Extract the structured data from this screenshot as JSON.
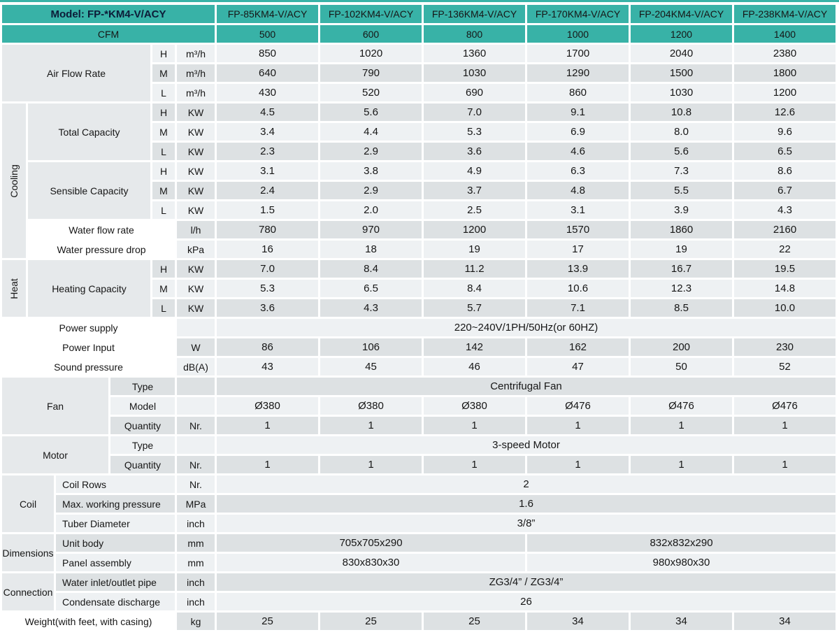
{
  "colors": {
    "header_teal": "#38b2a7",
    "row_light": "#eef1f3",
    "row_dark": "#dde1e3",
    "label_gray": "#e6e9eb",
    "model_text": "#0c1c38"
  },
  "table": {
    "rows": [
      [
        {
          "t": "Model: FP-*KM4-V/ACY",
          "cs": 6,
          "cls": "teal model",
          "name": "model-header"
        },
        {
          "t": "FP-85KM4-V/ACY",
          "cls": "teal head",
          "name": "column-header"
        },
        {
          "t": "FP-102KM4-V/ACY",
          "cls": "teal head",
          "name": "column-header"
        },
        {
          "t": "FP-136KM4-V/ACY",
          "cls": "teal head",
          "name": "column-header"
        },
        {
          "t": "FP-170KM4-V/ACY",
          "cls": "teal head",
          "name": "column-header"
        },
        {
          "t": "FP-204KM4-V/ACY",
          "cls": "teal head",
          "name": "column-header"
        },
        {
          "t": "FP-238KM4-V/ACY",
          "cls": "teal head",
          "name": "column-header"
        }
      ],
      [
        {
          "t": "CFM",
          "cs": 6,
          "cls": "teal",
          "name": "cfm-label"
        },
        {
          "t": "500",
          "cls": "teal",
          "name": "cfm-value"
        },
        {
          "t": "600",
          "cls": "teal",
          "name": "cfm-value"
        },
        {
          "t": "800",
          "cls": "teal",
          "name": "cfm-value"
        },
        {
          "t": "1000",
          "cls": "teal",
          "name": "cfm-value"
        },
        {
          "t": "1200",
          "cls": "teal",
          "name": "cfm-value"
        },
        {
          "t": "1400",
          "cls": "teal",
          "name": "cfm-value"
        }
      ],
      [
        {
          "t": "Air Flow Rate",
          "cs": 4,
          "rs": 3,
          "cls": "lbl",
          "name": "group-label"
        },
        {
          "t": "H",
          "cls": "hml"
        },
        {
          "t": "m³/h",
          "cls": "unit"
        },
        {
          "t": "850",
          "cls": "data"
        },
        {
          "t": "1020",
          "cls": "data"
        },
        {
          "t": "1360",
          "cls": "data"
        },
        {
          "t": "1700",
          "cls": "data"
        },
        {
          "t": "2040",
          "cls": "data"
        },
        {
          "t": "2380",
          "cls": "data"
        }
      ],
      [
        {
          "t": "M",
          "cls": "hml"
        },
        {
          "t": "m³/h",
          "cls": "unit"
        },
        {
          "t": "640",
          "cls": "data"
        },
        {
          "t": "790",
          "cls": "data"
        },
        {
          "t": "1030",
          "cls": "data"
        },
        {
          "t": "1290",
          "cls": "data"
        },
        {
          "t": "1500",
          "cls": "data"
        },
        {
          "t": "1800",
          "cls": "data"
        }
      ],
      [
        {
          "t": "L",
          "cls": "hml"
        },
        {
          "t": "m³/h",
          "cls": "unit"
        },
        {
          "t": "430",
          "cls": "data"
        },
        {
          "t": "520",
          "cls": "data"
        },
        {
          "t": "690",
          "cls": "data"
        },
        {
          "t": "860",
          "cls": "data"
        },
        {
          "t": "1030",
          "cls": "data"
        },
        {
          "t": "1200",
          "cls": "data"
        }
      ],
      [
        {
          "t": "Cooling",
          "rs": 8,
          "cls": "lbl vert",
          "name": "section-label"
        },
        {
          "t": "Total Capacity",
          "cs": 3,
          "rs": 3,
          "cls": "lbl",
          "name": "group-label"
        },
        {
          "t": "H",
          "cls": "hml"
        },
        {
          "t": "KW",
          "cls": "unit"
        },
        {
          "t": "4.5",
          "cls": "data"
        },
        {
          "t": "5.6",
          "cls": "data"
        },
        {
          "t": "7.0",
          "cls": "data"
        },
        {
          "t": "9.1",
          "cls": "data"
        },
        {
          "t": "10.8",
          "cls": "data"
        },
        {
          "t": "12.6",
          "cls": "data"
        }
      ],
      [
        {
          "t": "M",
          "cls": "hml"
        },
        {
          "t": "KW",
          "cls": "unit"
        },
        {
          "t": "3.4",
          "cls": "data"
        },
        {
          "t": "4.4",
          "cls": "data"
        },
        {
          "t": "5.3",
          "cls": "data"
        },
        {
          "t": "6.9",
          "cls": "data"
        },
        {
          "t": "8.0",
          "cls": "data"
        },
        {
          "t": "9.6",
          "cls": "data"
        }
      ],
      [
        {
          "t": "L",
          "cls": "hml"
        },
        {
          "t": "KW",
          "cls": "unit"
        },
        {
          "t": "2.3",
          "cls": "data"
        },
        {
          "t": "2.9",
          "cls": "data"
        },
        {
          "t": "3.6",
          "cls": "data"
        },
        {
          "t": "4.6",
          "cls": "data"
        },
        {
          "t": "5.6",
          "cls": "data"
        },
        {
          "t": "6.5",
          "cls": "data"
        }
      ],
      [
        {
          "t": "Sensible Capacity",
          "cs": 3,
          "rs": 3,
          "cls": "lbl",
          "name": "group-label"
        },
        {
          "t": "H",
          "cls": "hml"
        },
        {
          "t": "KW",
          "cls": "unit"
        },
        {
          "t": "3.1",
          "cls": "data"
        },
        {
          "t": "3.8",
          "cls": "data"
        },
        {
          "t": "4.9",
          "cls": "data"
        },
        {
          "t": "6.3",
          "cls": "data"
        },
        {
          "t": "7.3",
          "cls": "data"
        },
        {
          "t": "8.6",
          "cls": "data"
        }
      ],
      [
        {
          "t": "M",
          "cls": "hml"
        },
        {
          "t": "KW",
          "cls": "unit"
        },
        {
          "t": "2.4",
          "cls": "data"
        },
        {
          "t": "2.9",
          "cls": "data"
        },
        {
          "t": "3.7",
          "cls": "data"
        },
        {
          "t": "4.8",
          "cls": "data"
        },
        {
          "t": "5.5",
          "cls": "data"
        },
        {
          "t": "6.7",
          "cls": "data"
        }
      ],
      [
        {
          "t": "L",
          "cls": "hml"
        },
        {
          "t": "KW",
          "cls": "unit"
        },
        {
          "t": "1.5",
          "cls": "data"
        },
        {
          "t": "2.0",
          "cls": "data"
        },
        {
          "t": "2.5",
          "cls": "data"
        },
        {
          "t": "3.1",
          "cls": "data"
        },
        {
          "t": "3.9",
          "cls": "data"
        },
        {
          "t": "4.3",
          "cls": "data"
        }
      ],
      [
        {
          "t": "Water flow rate",
          "cs": 4,
          "cls": "rowlbl",
          "name": "row-label"
        },
        {
          "t": "l/h",
          "cls": "unit"
        },
        {
          "t": "780",
          "cls": "data"
        },
        {
          "t": "970",
          "cls": "data"
        },
        {
          "t": "1200",
          "cls": "data"
        },
        {
          "t": "1570",
          "cls": "data"
        },
        {
          "t": "1860",
          "cls": "data"
        },
        {
          "t": "2160",
          "cls": "data"
        }
      ],
      [
        {
          "t": "Water pressure drop",
          "cs": 4,
          "cls": "rowlbl",
          "name": "row-label"
        },
        {
          "t": "kPa",
          "cls": "unit"
        },
        {
          "t": "16",
          "cls": "data"
        },
        {
          "t": "18",
          "cls": "data"
        },
        {
          "t": "19",
          "cls": "data"
        },
        {
          "t": "17",
          "cls": "data"
        },
        {
          "t": "19",
          "cls": "data"
        },
        {
          "t": "22",
          "cls": "data"
        }
      ],
      [
        {
          "t": "Heat",
          "rs": 3,
          "cls": "lbl vert",
          "name": "section-label"
        },
        {
          "t": "Heating Capacity",
          "cs": 3,
          "rs": 3,
          "cls": "lbl",
          "name": "group-label"
        },
        {
          "t": "H",
          "cls": "hml"
        },
        {
          "t": "KW",
          "cls": "unit"
        },
        {
          "t": "7.0",
          "cls": "data"
        },
        {
          "t": "8.4",
          "cls": "data"
        },
        {
          "t": "11.2",
          "cls": "data"
        },
        {
          "t": "13.9",
          "cls": "data"
        },
        {
          "t": "16.7",
          "cls": "data"
        },
        {
          "t": "19.5",
          "cls": "data"
        }
      ],
      [
        {
          "t": "M",
          "cls": "hml"
        },
        {
          "t": "KW",
          "cls": "unit"
        },
        {
          "t": "5.3",
          "cls": "data"
        },
        {
          "t": "6.5",
          "cls": "data"
        },
        {
          "t": "8.4",
          "cls": "data"
        },
        {
          "t": "10.6",
          "cls": "data"
        },
        {
          "t": "12.3",
          "cls": "data"
        },
        {
          "t": "14.8",
          "cls": "data"
        }
      ],
      [
        {
          "t": "L",
          "cls": "hml"
        },
        {
          "t": "KW",
          "cls": "unit"
        },
        {
          "t": "3.6",
          "cls": "data"
        },
        {
          "t": "4.3",
          "cls": "data"
        },
        {
          "t": "5.7",
          "cls": "data"
        },
        {
          "t": "7.1",
          "cls": "data"
        },
        {
          "t": "8.5",
          "cls": "data"
        },
        {
          "t": "10.0",
          "cls": "data"
        }
      ],
      [
        {
          "t": "Power supply",
          "cs": 5,
          "cls": "rowlbl",
          "name": "row-label"
        },
        {
          "t": "",
          "cls": "unit"
        },
        {
          "t": "220~240V/1PH/50Hz(or 60HZ)",
          "cs": 6,
          "cls": "data"
        }
      ],
      [
        {
          "t": "Power Input",
          "cs": 5,
          "cls": "rowlbl",
          "name": "row-label"
        },
        {
          "t": "W",
          "cls": "unit"
        },
        {
          "t": "86",
          "cls": "data"
        },
        {
          "t": "106",
          "cls": "data"
        },
        {
          "t": "142",
          "cls": "data"
        },
        {
          "t": "162",
          "cls": "data"
        },
        {
          "t": "200",
          "cls": "data"
        },
        {
          "t": "230",
          "cls": "data"
        }
      ],
      [
        {
          "t": "Sound pressure",
          "cs": 5,
          "cls": "rowlbl",
          "name": "row-label"
        },
        {
          "t": "dB(A)",
          "cls": "unit"
        },
        {
          "t": "43",
          "cls": "data"
        },
        {
          "t": "45",
          "cls": "data"
        },
        {
          "t": "46",
          "cls": "data"
        },
        {
          "t": "47",
          "cls": "data"
        },
        {
          "t": "50",
          "cls": "data"
        },
        {
          "t": "52",
          "cls": "data"
        }
      ],
      [
        {
          "t": "Fan",
          "cs": 3,
          "rs": 3,
          "cls": "lbl",
          "name": "group-label"
        },
        {
          "t": "Type",
          "cs": 2,
          "cls": "sub",
          "name": "row-label"
        },
        {
          "t": "",
          "cls": "unit"
        },
        {
          "t": "Centrifugal Fan",
          "cs": 6,
          "cls": "data"
        }
      ],
      [
        {
          "t": "Model",
          "cs": 2,
          "cls": "sub",
          "name": "row-label"
        },
        {
          "t": "",
          "cls": "unit"
        },
        {
          "t": "Ø380",
          "cls": "data"
        },
        {
          "t": "Ø380",
          "cls": "data"
        },
        {
          "t": "Ø380",
          "cls": "data"
        },
        {
          "t": "Ø476",
          "cls": "data"
        },
        {
          "t": "Ø476",
          "cls": "data"
        },
        {
          "t": "Ø476",
          "cls": "data"
        }
      ],
      [
        {
          "t": "Quantity",
          "cs": 2,
          "cls": "sub",
          "name": "row-label"
        },
        {
          "t": "Nr.",
          "cls": "unit"
        },
        {
          "t": "1",
          "cls": "data"
        },
        {
          "t": "1",
          "cls": "data"
        },
        {
          "t": "1",
          "cls": "data"
        },
        {
          "t": "1",
          "cls": "data"
        },
        {
          "t": "1",
          "cls": "data"
        },
        {
          "t": "1",
          "cls": "data"
        }
      ],
      [
        {
          "t": "Motor",
          "cs": 3,
          "rs": 2,
          "cls": "lbl",
          "name": "group-label"
        },
        {
          "t": "Type",
          "cs": 2,
          "cls": "sub",
          "name": "row-label"
        },
        {
          "t": "",
          "cls": "unit"
        },
        {
          "t": "3-speed Motor",
          "cs": 6,
          "cls": "data"
        }
      ],
      [
        {
          "t": "Quantity",
          "cs": 2,
          "cls": "sub",
          "name": "row-label"
        },
        {
          "t": "Nr.",
          "cls": "unit"
        },
        {
          "t": "1",
          "cls": "data"
        },
        {
          "t": "1",
          "cls": "data"
        },
        {
          "t": "1",
          "cls": "data"
        },
        {
          "t": "1",
          "cls": "data"
        },
        {
          "t": "1",
          "cls": "data"
        },
        {
          "t": "1",
          "cls": "data"
        }
      ],
      [
        {
          "t": "Coil",
          "cs": 2,
          "rs": 3,
          "cls": "lbl",
          "name": "group-label"
        },
        {
          "t": "Coil Rows",
          "cs": 3,
          "cls": "subl",
          "name": "row-label"
        },
        {
          "t": "Nr.",
          "cls": "unit"
        },
        {
          "t": "2",
          "cs": 6,
          "cls": "data"
        }
      ],
      [
        {
          "t": "Max. working pressure",
          "cs": 3,
          "cls": "subl",
          "name": "row-label"
        },
        {
          "t": "MPa",
          "cls": "unit"
        },
        {
          "t": "1.6",
          "cs": 6,
          "cls": "data"
        }
      ],
      [
        {
          "t": "Tuber Diameter",
          "cs": 3,
          "cls": "subl",
          "name": "row-label"
        },
        {
          "t": "inch",
          "cls": "unit"
        },
        {
          "t": "3/8”",
          "cs": 6,
          "cls": "data"
        }
      ],
      [
        {
          "t": "Dimensions",
          "cs": 2,
          "rs": 2,
          "cls": "lbl",
          "name": "group-label"
        },
        {
          "t": "Unit body",
          "cs": 3,
          "cls": "subl",
          "name": "row-label"
        },
        {
          "t": "mm",
          "cls": "unit"
        },
        {
          "t": "705x705x290",
          "cs": 3,
          "cls": "data"
        },
        {
          "t": "832x832x290",
          "cs": 3,
          "cls": "data"
        }
      ],
      [
        {
          "t": "Panel assembly",
          "cs": 3,
          "cls": "subl",
          "name": "row-label"
        },
        {
          "t": "mm",
          "cls": "unit"
        },
        {
          "t": "830x830x30",
          "cs": 3,
          "cls": "data"
        },
        {
          "t": "980x980x30",
          "cs": 3,
          "cls": "data"
        }
      ],
      [
        {
          "t": "Connection",
          "cs": 2,
          "rs": 2,
          "cls": "lbl",
          "name": "group-label"
        },
        {
          "t": "Water inlet/outlet pipe",
          "cs": 3,
          "cls": "subl",
          "name": "row-label"
        },
        {
          "t": "inch",
          "cls": "unit"
        },
        {
          "t": "ZG3/4” / ZG3/4”",
          "cs": 6,
          "cls": "data"
        }
      ],
      [
        {
          "t": "Condensate discharge",
          "cs": 3,
          "cls": "subl",
          "name": "row-label"
        },
        {
          "t": "inch",
          "cls": "unit"
        },
        {
          "t": "26",
          "cs": 6,
          "cls": "data"
        }
      ],
      [
        {
          "t": "Weight(with feet, with casing)",
          "cs": 5,
          "cls": "rowlbl",
          "name": "row-label"
        },
        {
          "t": "kg",
          "cls": "unit"
        },
        {
          "t": "25",
          "cls": "data"
        },
        {
          "t": "25",
          "cls": "data"
        },
        {
          "t": "25",
          "cls": "data"
        },
        {
          "t": "34",
          "cls": "data"
        },
        {
          "t": "34",
          "cls": "data"
        },
        {
          "t": "34",
          "cls": "data"
        }
      ]
    ]
  }
}
